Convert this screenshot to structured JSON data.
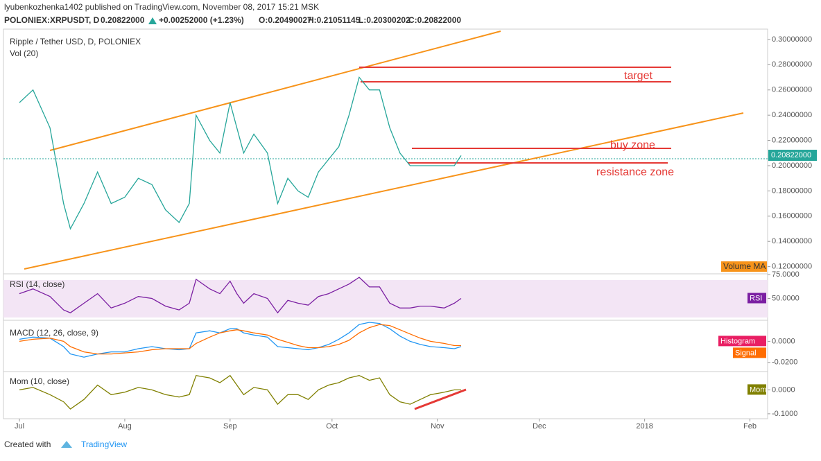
{
  "header": {
    "author_line": "lyubenkozhenka1402 published on TradingView.com, November 08, 2017 15:21 MSK",
    "symbol": "POLONIEX:XRPUSDT, D",
    "price": "0.20822000",
    "change": "+0.00252000 (+1.23%)",
    "open": "O:0.20490027",
    "high": "H:0.21051145",
    "low": "L:0.20300202",
    "close": "C:0.20822000"
  },
  "footer": {
    "created": "Created with",
    "brand": "TradingView"
  },
  "chart_data": [
    {
      "type": "line",
      "title": "Ripple / Tether USD, D, POLONIEX",
      "subtitle": "Vol (20)",
      "x": [
        0,
        4,
        9,
        13,
        15,
        19,
        23,
        27,
        31,
        35,
        39,
        43,
        47,
        50,
        52,
        56,
        59,
        62,
        64,
        66,
        69,
        73,
        76,
        79,
        82,
        85,
        88,
        91,
        94,
        97,
        100,
        103,
        106,
        109,
        112,
        115,
        118,
        121,
        125,
        128,
        130
      ],
      "values": [
        0.25,
        0.26,
        0.23,
        0.17,
        0.15,
        0.17,
        0.195,
        0.17,
        0.175,
        0.19,
        0.185,
        0.165,
        0.155,
        0.17,
        0.24,
        0.22,
        0.21,
        0.25,
        0.23,
        0.21,
        0.225,
        0.21,
        0.17,
        0.19,
        0.18,
        0.175,
        0.195,
        0.205,
        0.215,
        0.24,
        0.27,
        0.26,
        0.26,
        0.23,
        0.21,
        0.2,
        0.2,
        0.2,
        0.2,
        0.2,
        0.208
      ],
      "color": "#26a69a",
      "xlim": [
        -4.7,
        220.2
      ],
      "ylim": [
        0.1143,
        0.3082
      ],
      "yticks": [
        {
          "value": 0.12,
          "label": "0.12000000"
        },
        {
          "value": 0.14,
          "label": "0.14000000"
        },
        {
          "value": 0.16,
          "label": "0.16000000"
        },
        {
          "value": 0.18,
          "label": "0.18000000"
        },
        {
          "value": 0.2,
          "label": "0.20000000"
        },
        {
          "value": 0.22,
          "label": "0.22000000"
        },
        {
          "value": 0.24,
          "label": "0.24000000"
        },
        {
          "value": 0.26,
          "label": "0.26000000"
        },
        {
          "value": 0.28,
          "label": "0.28000000"
        },
        {
          "value": 0.3,
          "label": "0.30000000"
        }
      ],
      "last_value": {
        "value": 0.20822,
        "label": "0.20822000"
      },
      "annotations": [
        "target",
        "buy zone",
        "resistance zone"
      ],
      "volume_label": "Volume MA"
    },
    {
      "type": "line",
      "title": "RSI (14, close)",
      "badge": "RSI",
      "x": [
        0,
        4,
        9,
        13,
        15,
        19,
        23,
        27,
        31,
        35,
        39,
        43,
        47,
        50,
        52,
        56,
        59,
        62,
        64,
        66,
        69,
        73,
        76,
        79,
        82,
        85,
        88,
        91,
        94,
        97,
        100,
        103,
        106,
        109,
        112,
        115,
        118,
        121,
        125,
        128,
        130
      ],
      "values": [
        55,
        60,
        52,
        38,
        35,
        45,
        55,
        40,
        45,
        52,
        50,
        42,
        38,
        45,
        70,
        60,
        55,
        68,
        55,
        45,
        55,
        50,
        35,
        48,
        45,
        43,
        52,
        55,
        60,
        65,
        72,
        62,
        62,
        45,
        40,
        40,
        42,
        42,
        40,
        45,
        50
      ],
      "color": "#7b1fa2",
      "xlim": [
        -4.7,
        220.2
      ],
      "ylim": [
        27.2,
        75.7
      ],
      "yticks": [
        {
          "value": 50,
          "label": "50.0000"
        },
        {
          "value": 75,
          "label": "75.0000"
        }
      ]
    },
    {
      "type": "line",
      "title": "MACD (12, 26, close, 9)",
      "badge": "Histogram",
      "x": [
        0,
        4,
        9,
        13,
        15,
        19,
        23,
        27,
        31,
        35,
        39,
        43,
        47,
        50,
        52,
        56,
        59,
        62,
        64,
        66,
        69,
        73,
        76,
        79,
        82,
        85,
        88,
        91,
        94,
        97,
        100,
        103,
        106,
        109,
        112,
        115,
        118,
        121,
        125,
        128,
        130
      ],
      "values": [
        0.002,
        0.004,
        0.003,
        -0.005,
        -0.012,
        -0.015,
        -0.012,
        -0.01,
        -0.01,
        -0.007,
        -0.005,
        -0.007,
        -0.008,
        -0.007,
        0.008,
        0.01,
        0.008,
        0.012,
        0.012,
        0.008,
        0.006,
        0.004,
        -0.005,
        -0.006,
        -0.007,
        -0.008,
        -0.006,
        -0.003,
        0.002,
        0.008,
        0.016,
        0.018,
        0.017,
        0.012,
        0.005,
        0,
        -0.003,
        -0.005,
        -0.006,
        -0.007,
        -0.005
      ],
      "color": "#2196f3",
      "series": [
        {
          "name": "Signal",
          "color": "#ff6d00",
          "values": [
            0,
            0.002,
            0.003,
            0,
            -0.005,
            -0.01,
            -0.012,
            -0.012,
            -0.011,
            -0.01,
            -0.008,
            -0.007,
            -0.007,
            -0.007,
            -0.002,
            0.004,
            0.008,
            0.01,
            0.011,
            0.01,
            0.008,
            0.006,
            0.002,
            -0.001,
            -0.004,
            -0.006,
            -0.006,
            -0.005,
            -0.003,
            0.001,
            0.008,
            0.013,
            0.016,
            0.015,
            0.011,
            0.007,
            0.003,
            0,
            -0.002,
            -0.004,
            -0.004
          ]
        }
      ],
      "xlim": [
        -4.7,
        220.2
      ],
      "ylim": [
        -0.0287,
        0.02
      ],
      "yticks": [
        {
          "value": -0.02,
          "label": "-0.0200"
        },
        {
          "value": 0,
          "label": "0.0000"
        }
      ]
    },
    {
      "type": "line",
      "title": "Mom (10, close)",
      "badge": "Mom",
      "x": [
        0,
        4,
        9,
        13,
        15,
        19,
        23,
        27,
        31,
        35,
        39,
        43,
        47,
        50,
        52,
        56,
        59,
        62,
        64,
        66,
        69,
        73,
        76,
        79,
        82,
        85,
        88,
        91,
        94,
        97,
        100,
        103,
        106,
        109,
        112,
        115,
        118,
        121,
        125,
        128,
        130
      ],
      "values": [
        0,
        0.01,
        -0.02,
        -0.05,
        -0.08,
        -0.04,
        0.02,
        -0.02,
        -0.01,
        0.01,
        0,
        -0.02,
        -0.03,
        -0.02,
        0.06,
        0.05,
        0.03,
        0.06,
        0.02,
        -0.02,
        0.01,
        0,
        -0.06,
        -0.02,
        -0.02,
        -0.04,
        0,
        0.02,
        0.03,
        0.05,
        0.06,
        0.04,
        0.05,
        -0.02,
        -0.05,
        -0.06,
        -0.04,
        -0.02,
        -0.01,
        0,
        0
      ],
      "color": "#808000",
      "xlim": [
        -4.7,
        220.2
      ],
      "ylim": [
        -0.1206,
        0.0765
      ],
      "yticks": [
        {
          "value": -0.1,
          "label": "-0.1000"
        },
        {
          "value": 0,
          "label": "0.0000"
        }
      ],
      "xticks": [
        {
          "value": 0,
          "label": "Jul"
        },
        {
          "value": 31,
          "label": "Aug"
        },
        {
          "value": 62,
          "label": "Sep"
        },
        {
          "value": 92,
          "label": "Oct"
        },
        {
          "value": 123,
          "label": "Nov"
        },
        {
          "value": 153,
          "label": "Dec"
        },
        {
          "value": 184,
          "label": "2018"
        },
        {
          "value": 215,
          "label": "Feb"
        }
      ]
    }
  ]
}
